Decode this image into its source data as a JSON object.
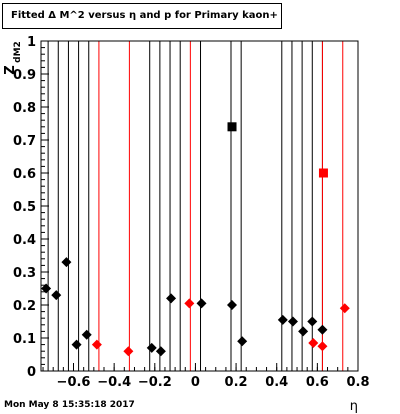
{
  "title": "Fitted Δ M^2 versus η and p for Primary kaon+",
  "footer_timestamp": "Mon May  8 15:35:18 2017",
  "chart_data": {
    "type": "scatter",
    "xlabel": "η",
    "ylabel": "Z",
    "ylabel_sub": "dM2",
    "xlim": [
      -0.76,
      0.8
    ],
    "ylim": [
      0,
      1
    ],
    "x_ticks": [
      -0.6,
      -0.4,
      -0.2,
      0,
      0.2,
      0.4,
      0.6,
      0.8
    ],
    "x_tick_labels": [
      "−0.6",
      "−0.4",
      "−0.2",
      "0",
      "0.2",
      "0.4",
      "0.6",
      "0.8"
    ],
    "y_ticks": [
      0,
      0.1,
      0.2,
      0.3,
      0.4,
      0.5,
      0.6,
      0.7,
      0.8,
      0.9,
      1
    ],
    "y_tick_labels": [
      "0",
      "0.1",
      "0.2",
      "0.3",
      "0.4",
      "0.5",
      "0.6",
      "0.7",
      "0.8",
      "0.9",
      "1"
    ],
    "black_color": "#000000",
    "red_color": "#ff0000",
    "vertical_lines_black": [
      -0.725,
      -0.675,
      -0.625,
      -0.575,
      -0.525,
      -0.225,
      -0.175,
      -0.125,
      -0.075,
      0.025,
      0.175,
      0.225,
      0.425,
      0.475,
      0.525,
      0.575,
      0.625
    ],
    "vertical_lines_red": [
      -0.475,
      -0.325,
      -0.025,
      0.625,
      0.725
    ],
    "series": [
      {
        "marker": "diamond",
        "color": "#000000",
        "points": [
          {
            "x": -0.735,
            "y": 0.25
          },
          {
            "x": -0.685,
            "y": 0.23
          },
          {
            "x": -0.635,
            "y": 0.33
          },
          {
            "x": -0.585,
            "y": 0.08
          },
          {
            "x": -0.535,
            "y": 0.11
          },
          {
            "x": -0.215,
            "y": 0.07
          },
          {
            "x": -0.17,
            "y": 0.06
          },
          {
            "x": -0.12,
            "y": 0.22
          },
          {
            "x": 0.03,
            "y": 0.205
          },
          {
            "x": 0.18,
            "y": 0.2
          },
          {
            "x": 0.23,
            "y": 0.09
          },
          {
            "x": 0.43,
            "y": 0.155
          },
          {
            "x": 0.48,
            "y": 0.15
          },
          {
            "x": 0.53,
            "y": 0.12
          },
          {
            "x": 0.575,
            "y": 0.15
          },
          {
            "x": 0.625,
            "y": 0.125
          }
        ]
      },
      {
        "marker": "diamond",
        "color": "#ff0000",
        "points": [
          {
            "x": -0.485,
            "y": 0.08
          },
          {
            "x": -0.33,
            "y": 0.06
          },
          {
            "x": -0.03,
            "y": 0.205
          },
          {
            "x": 0.58,
            "y": 0.085
          },
          {
            "x": 0.625,
            "y": 0.075
          },
          {
            "x": 0.735,
            "y": 0.19
          }
        ]
      },
      {
        "marker": "square",
        "color": "#000000",
        "points": [
          {
            "x": 0.18,
            "y": 0.74
          }
        ]
      },
      {
        "marker": "square",
        "color": "#ff0000",
        "points": [
          {
            "x": 0.63,
            "y": 0.6
          }
        ]
      }
    ]
  }
}
